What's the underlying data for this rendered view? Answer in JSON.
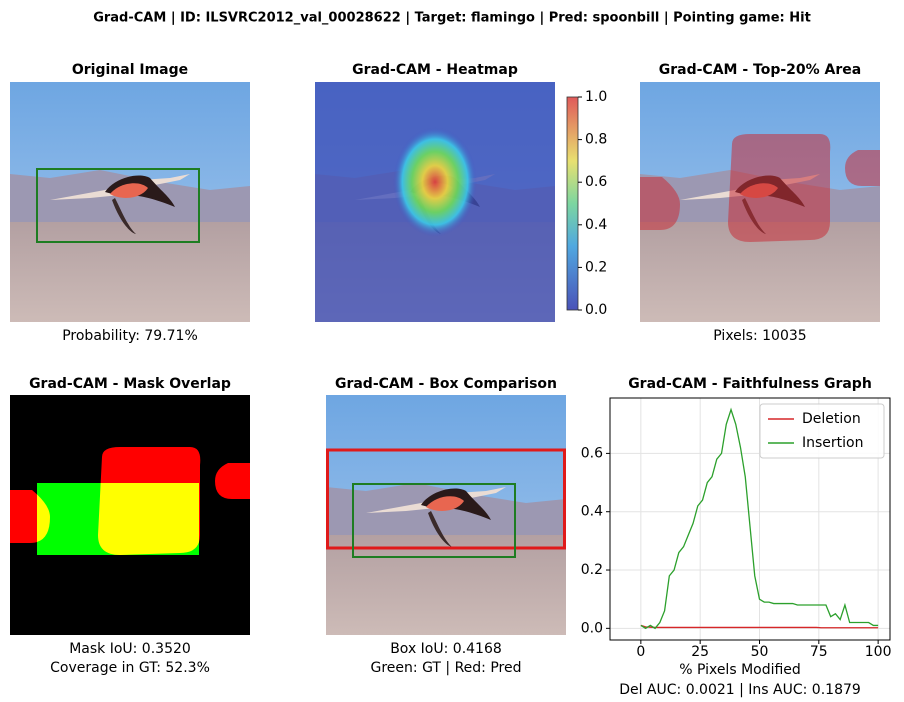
{
  "title": "Grad-CAM | ID: ILSVRC2012_val_00028622 | Target: flamingo | Pred: spoonbill | Pointing game: Hit",
  "panels": [
    {
      "title": "Original Image",
      "captions": [
        "Probability: 79.71%"
      ]
    },
    {
      "title": "Grad-CAM - Heatmap",
      "captions": []
    },
    {
      "title": "Grad-CAM - Top-20% Area",
      "captions": [
        "Pixels: 10035"
      ]
    },
    {
      "title": "Grad-CAM - Mask Overlap",
      "captions": [
        "Mask IoU: 0.3520",
        "Coverage in GT: 52.3%"
      ]
    },
    {
      "title": "Grad-CAM - Box Comparison",
      "captions": [
        "Box IoU: 0.4168",
        "Green: GT | Red: Pred"
      ]
    }
  ],
  "chart_data": [
    {
      "type": "colorbar",
      "ylim": [
        0,
        1
      ],
      "yticks": [
        {
          "value": 0,
          "label": "0.0"
        },
        0.2,
        0.4,
        0.6,
        0.8,
        {
          "value": 1,
          "label": "1.0"
        }
      ]
    },
    {
      "type": "line",
      "title": "Grad-CAM - Faithfulness Graph",
      "xlabel": "% Pixels Modified",
      "caption": "Del AUC: 0.0021 | Ins AUC: 0.1879",
      "x": [
        0,
        2,
        4,
        6,
        8,
        10,
        12,
        14,
        16,
        18,
        20,
        22,
        24,
        26,
        28,
        30,
        32,
        34,
        36,
        38,
        40,
        42,
        44,
        46,
        48,
        50,
        52,
        54,
        56,
        58,
        60,
        62,
        64,
        66,
        68,
        70,
        72,
        74,
        76,
        78,
        80,
        82,
        84,
        86,
        88,
        90,
        92,
        94,
        96,
        98,
        100
      ],
      "series": [
        {
          "name": "Deletion",
          "color": "#d62728",
          "values": [
            0.01,
            0.005,
            0.004,
            0.003,
            0.003,
            0.003,
            0.003,
            0.003,
            0.003,
            0.003,
            0.003,
            0.003,
            0.003,
            0.003,
            0.003,
            0.003,
            0.003,
            0.003,
            0.003,
            0.003,
            0.003,
            0.003,
            0.003,
            0.003,
            0.003,
            0.003,
            0.003,
            0.003,
            0.003,
            0.003,
            0.003,
            0.003,
            0.003,
            0.003,
            0.003,
            0.003,
            0.003,
            0.003,
            0.002,
            0.002,
            0.002,
            0.002,
            0.002,
            0.002,
            0.002,
            0.002,
            0.002,
            0.002,
            0.002,
            0.002,
            0.002
          ]
        },
        {
          "name": "Insertion",
          "color": "#2ca02c",
          "values": [
            0.01,
            0.0,
            0.01,
            0.0,
            0.02,
            0.06,
            0.18,
            0.2,
            0.26,
            0.28,
            0.32,
            0.36,
            0.42,
            0.44,
            0.5,
            0.52,
            0.58,
            0.6,
            0.7,
            0.75,
            0.7,
            0.62,
            0.52,
            0.35,
            0.18,
            0.1,
            0.09,
            0.09,
            0.085,
            0.085,
            0.085,
            0.085,
            0.085,
            0.08,
            0.08,
            0.08,
            0.08,
            0.08,
            0.08,
            0.08,
            0.04,
            0.05,
            0.03,
            0.08,
            0.02,
            0.02,
            0.02,
            0.02,
            0.02,
            0.01,
            0.01
          ]
        }
      ],
      "xlim": [
        -13,
        105
      ],
      "ylim": [
        -0.04,
        0.79
      ],
      "xticks": [
        0,
        25,
        50,
        75,
        100
      ],
      "yticks": [
        {
          "value": 0,
          "label": "0.0"
        },
        0.2,
        0.4,
        0.6
      ],
      "grid": true,
      "legend": "upper right"
    }
  ]
}
